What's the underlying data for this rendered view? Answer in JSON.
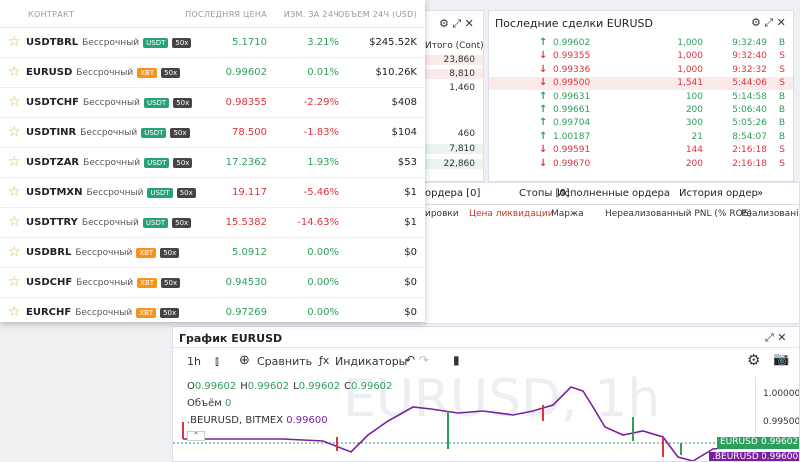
{
  "markets": {
    "columns": [
      "КОНТРАКТ",
      "ПОСЛЕДНЯЯ ЦЕНА",
      "ИЗМ. ЗА 24Ч",
      "ОБЪЕМ 24Ч (USD)"
    ],
    "rows": [
      {
        "symbol": "USDTBRL",
        "type": "Бессрочный",
        "badge": "USDT",
        "leverage": "50x",
        "last_price": "5.1710",
        "change": "3.21%",
        "volume": "$245.52K"
      },
      {
        "symbol": "EURUSD",
        "type": "Бессрочный",
        "badge": "XBT",
        "leverage": "50x",
        "last_price": "0.99602",
        "change": "0.01%",
        "volume": "$10.26K"
      },
      {
        "symbol": "USDTCHF",
        "type": "Бессрочный",
        "badge": "USDT",
        "leverage": "50x",
        "last_price": "0.98355",
        "change": "-2.29%",
        "volume": "$408"
      },
      {
        "symbol": "USDTINR",
        "type": "Бессрочный",
        "badge": "USDT",
        "leverage": "50x",
        "last_price": "78.500",
        "change": "-1.83%",
        "volume": "$104"
      },
      {
        "symbol": "USDTZAR",
        "type": "Бессрочный",
        "badge": "USDT",
        "leverage": "50x",
        "last_price": "17.2362",
        "change": "1.93%",
        "volume": "$53"
      },
      {
        "symbol": "USDTMXN",
        "type": "Бессрочный",
        "badge": "USDT",
        "leverage": "50x",
        "last_price": "19.117",
        "change": "-5.46%",
        "volume": "$1"
      },
      {
        "symbol": "USDTTRY",
        "type": "Бессрочный",
        "badge": "USDT",
        "leverage": "50x",
        "last_price": "15.5382",
        "change": "-14.63%",
        "volume": "$1"
      },
      {
        "symbol": "USDBRL",
        "type": "Бессрочный",
        "badge": "XBT",
        "leverage": "50x",
        "last_price": "5.0912",
        "change": "0.00%",
        "volume": "$0"
      },
      {
        "symbol": "USDCHF",
        "type": "Бессрочный",
        "badge": "XBT",
        "leverage": "50x",
        "last_price": "0.94530",
        "change": "0.00%",
        "volume": "$0"
      },
      {
        "symbol": "EURCHF",
        "type": "Бессрочный",
        "badge": "XBT",
        "leverage": "50x",
        "last_price": "0.97269",
        "change": "0.00%",
        "volume": "$0"
      }
    ]
  },
  "order_book": {
    "header": "Итого (Cont)",
    "totals": [
      "23,860",
      "8,810",
      "1,460",
      "460",
      "7,810",
      "22,860"
    ]
  },
  "trades": {
    "title": "Последние сделки EURUSD",
    "rows": [
      {
        "price": "0.99602",
        "size": "1,000",
        "time": "9:32:49",
        "side": "B"
      },
      {
        "price": "0.99355",
        "size": "1,000",
        "time": "9:32:40",
        "side": "S"
      },
      {
        "price": "0.99336",
        "size": "1,000",
        "time": "9:32:32",
        "side": "S"
      },
      {
        "price": "0.99500",
        "size": "1,541",
        "time": "5:44:06",
        "side": "S"
      },
      {
        "price": "0.99631",
        "size": "100",
        "time": "5:14:58",
        "side": "B"
      },
      {
        "price": "0.99661",
        "size": "200",
        "time": "5:06:40",
        "side": "B"
      },
      {
        "price": "0.99704",
        "size": "300",
        "time": "5:05:26",
        "side": "B"
      },
      {
        "price": "1.00187",
        "size": "21",
        "time": "8:54:07",
        "side": "B"
      },
      {
        "price": "0.99591",
        "size": "144",
        "time": "2:16:18",
        "side": "S"
      },
      {
        "price": "0.99670",
        "size": "200",
        "time": "2:16:18",
        "side": "S"
      }
    ]
  },
  "orders": {
    "tabs": [
      "ордера [0]",
      "Стопы [0]",
      "Исполненные ордера",
      "История ордер",
      "»"
    ],
    "columns": [
      "ировки",
      "Цена ликвидации",
      "Маржа",
      "Нереализованный PNL (% ROE)",
      "Реализовані"
    ]
  },
  "chart": {
    "title": "График EURUSD",
    "interval": "1h",
    "compare": "Сравнить",
    "indicators": "Индикаторы",
    "ohlc": [
      {
        "label": "O",
        "value": "0.99602"
      },
      {
        "label": "H",
        "value": "0.99602"
      },
      {
        "label": "L",
        "value": "0.99602"
      },
      {
        "label": "C",
        "value": "0.99602"
      }
    ],
    "volume_label": "Объём",
    "volume": "0",
    "series_label": ".BEURUSD, BITMEX",
    "series_value": "0.99600",
    "watermark": "EURUSD, 1h",
    "price_axis": [
      "1.00000",
      "0.99500"
    ],
    "tags": [
      {
        "name": "EURUSD",
        "value": "0.99602"
      },
      {
        "name": ".BEURUSD",
        "value": "0.99600"
      }
    ]
  }
}
